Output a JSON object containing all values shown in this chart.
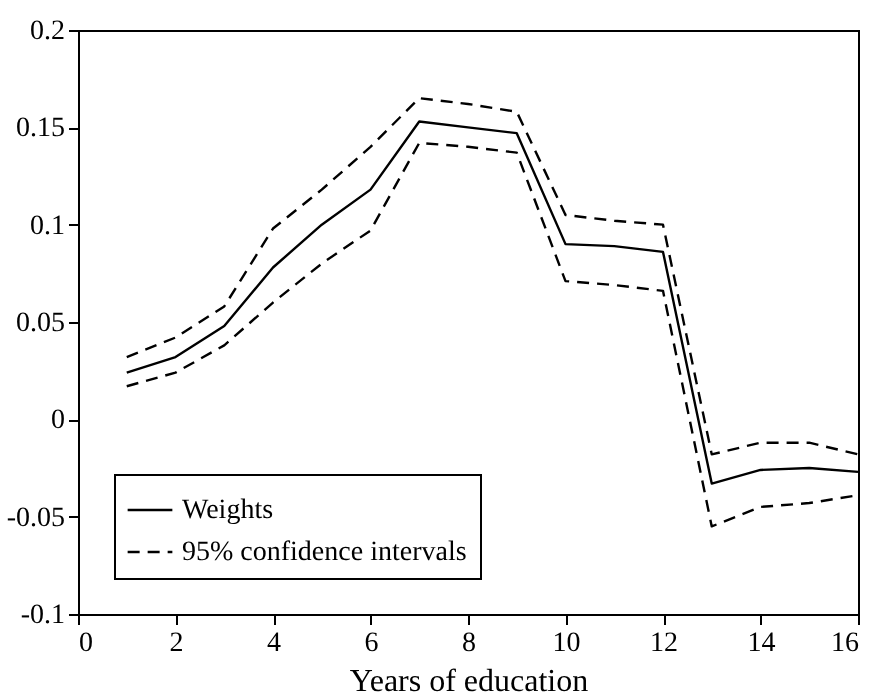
{
  "chart_data": {
    "type": "line",
    "xlabel": "Years of education",
    "x": [
      1,
      2,
      3,
      4,
      5,
      6,
      7,
      8,
      9,
      10,
      11,
      12,
      13,
      14,
      15,
      16
    ],
    "series": [
      {
        "name": "Weights",
        "color": "#000000",
        "line_style": "solid",
        "values": [
          0.024,
          0.032,
          0.048,
          0.078,
          0.1,
          0.118,
          0.153,
          0.15,
          0.147,
          0.09,
          0.089,
          0.086,
          -0.033,
          -0.026,
          -0.025,
          -0.027
        ]
      },
      {
        "name": "95% confidence intervals",
        "color": "#000000",
        "line_style": "dashed",
        "values": [
          0.032,
          0.042,
          0.058,
          0.098,
          0.118,
          0.14,
          0.165,
          0.162,
          0.158,
          0.105,
          0.102,
          0.1,
          -0.018,
          -0.012,
          -0.012,
          -0.018
        ]
      },
      {
        "color": "#000000",
        "line_style": "dashed",
        "values": [
          0.017,
          0.024,
          0.038,
          0.06,
          0.08,
          0.097,
          0.142,
          0.14,
          0.137,
          0.071,
          0.069,
          0.066,
          -0.055,
          -0.045,
          -0.043,
          -0.039
        ]
      }
    ],
    "xlim": [
      0,
      16
    ],
    "xticks": [
      0,
      2,
      4,
      6,
      8,
      10,
      12,
      14,
      16
    ],
    "ylim": [
      -0.1,
      0.2
    ],
    "yticks": [
      -0.1,
      -0.05,
      0,
      0.05,
      0.1,
      0.15,
      0.2
    ],
    "grid": false,
    "legend": "bottom left",
    "marker": "none"
  }
}
